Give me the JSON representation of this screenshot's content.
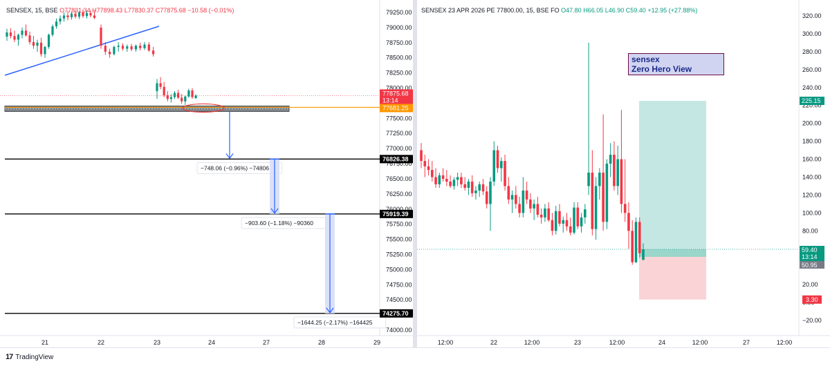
{
  "left_chart": {
    "legend": {
      "symbol": "SENSEX, 15, BSE",
      "open": "O77831.34",
      "high": "H77898.43",
      "low": "L77830.37",
      "close": "C77875.68",
      "change": "−10.58 (−0.01%)"
    },
    "y_ticks": [
      "79250.00",
      "79000.00",
      "78750.00",
      "78500.00",
      "78250.00",
      "78000.00",
      "77750.00",
      "77500.00",
      "77250.00",
      "77000.00",
      "76750.00",
      "76500.00",
      "76250.00",
      "76000.00",
      "75750.00",
      "75500.00",
      "75250.00",
      "75000.00",
      "74750.00",
      "74500.00",
      "74250.00",
      "74000.00"
    ],
    "x_ticks": [
      "21",
      "22",
      "23",
      "24",
      "27",
      "28",
      "29"
    ],
    "price_labels": {
      "current": "77875.68",
      "timer": "13:14",
      "support": "77681.25",
      "level1": "76826.38",
      "level2": "75919.39",
      "level3": "74275.70"
    },
    "measure_labels": {
      "m1": "−748.06 (−0.96%) −74806",
      "m2": "−903.60 (−1.18%) −90360",
      "m3": "−1644.25 (−2.17%) −164425"
    },
    "colors": {
      "up": "#089981",
      "down": "#f23645",
      "trendline": "#2962ff",
      "support": "#ff9800",
      "zone": "#787b86",
      "arrow": "#2962ff"
    }
  },
  "right_chart": {
    "legend": {
      "symbol": "SENSEX 23 APR 2026 PE 77800.00, 15, BSE FO",
      "open": "O47.80",
      "high": "H66.05",
      "low": "L46.90",
      "close": "C59.40",
      "change": "+12.95 (+27.88%)"
    },
    "watermark": {
      "line1": "sensex",
      "line2": "Zero Hero View"
    },
    "y_ticks": [
      "320.00",
      "300.00",
      "280.00",
      "260.00",
      "240.00",
      "220.00",
      "200.00",
      "180.00",
      "160.00",
      "140.00",
      "120.00",
      "100.00",
      "80.00",
      "60.00",
      "40.00",
      "20.00",
      "0.00",
      "−20.00"
    ],
    "x_ticks": [
      "12:00",
      "22",
      "12:00",
      "23",
      "12:00",
      "24",
      "12:00",
      "27",
      "12:00"
    ],
    "price_labels": {
      "target": "225.15",
      "current": "59.40",
      "timer": "13:14",
      "entry": "50.95",
      "stop": "3.30"
    },
    "colors": {
      "up": "#089981",
      "down": "#f23645",
      "target_zone": "#b2dfdb",
      "stop_zone": "#f8c8cc"
    }
  },
  "chart_data": [
    {
      "type": "candlestick",
      "title": "SENSEX, 15, BSE",
      "y_range": [
        74000,
        79300
      ],
      "levels": {
        "support": 77681.25,
        "targets": [
          76826.38,
          75919.39,
          74275.7
        ],
        "current": 77875.68
      },
      "measures": [
        {
          "from": 77681.25,
          "to": 76826.38,
          "change": -748.06,
          "pct": -0.96
        },
        {
          "from": 76826.38,
          "to": 75919.39,
          "change": -903.6,
          "pct": -1.18
        },
        {
          "from": 75919.39,
          "to": 74275.7,
          "change": -1644.25,
          "pct": -2.17
        }
      ],
      "candles": [
        {
          "o": 78850,
          "h": 78980,
          "l": 78780,
          "c": 78920
        },
        {
          "o": 78920,
          "h": 78990,
          "l": 78820,
          "c": 78860
        },
        {
          "o": 78860,
          "h": 78950,
          "l": 78760,
          "c": 78800
        },
        {
          "o": 78800,
          "h": 78900,
          "l": 78700,
          "c": 78880
        },
        {
          "o": 78880,
          "h": 79000,
          "l": 78820,
          "c": 78950
        },
        {
          "o": 78950,
          "h": 79050,
          "l": 78850,
          "c": 78870
        },
        {
          "o": 78870,
          "h": 78930,
          "l": 78720,
          "c": 78760
        },
        {
          "o": 78760,
          "h": 78860,
          "l": 78650,
          "c": 78700
        },
        {
          "o": 78700,
          "h": 78800,
          "l": 78600,
          "c": 78750
        },
        {
          "o": 78750,
          "h": 78830,
          "l": 78520,
          "c": 78560
        },
        {
          "o": 78560,
          "h": 78700,
          "l": 78500,
          "c": 78680
        },
        {
          "o": 78680,
          "h": 78900,
          "l": 78650,
          "c": 78880
        },
        {
          "o": 78880,
          "h": 79050,
          "l": 78850,
          "c": 79020
        },
        {
          "o": 79020,
          "h": 79150,
          "l": 78980,
          "c": 79100
        },
        {
          "o": 79100,
          "h": 79200,
          "l": 79050,
          "c": 79150
        },
        {
          "o": 79150,
          "h": 79250,
          "l": 79100,
          "c": 79200
        },
        {
          "o": 79200,
          "h": 79280,
          "l": 79120,
          "c": 79170
        },
        {
          "o": 79170,
          "h": 79260,
          "l": 79130,
          "c": 79230
        },
        {
          "o": 79230,
          "h": 79290,
          "l": 79150,
          "c": 79180
        },
        {
          "o": 79180,
          "h": 79270,
          "l": 79140,
          "c": 79250
        },
        {
          "o": 79250,
          "h": 79300,
          "l": 79160,
          "c": 79190
        },
        {
          "o": 79190,
          "h": 79280,
          "l": 79150,
          "c": 79240
        },
        {
          "o": 79240,
          "h": 79290,
          "l": 79170,
          "c": 79200
        },
        {
          "o": 79200,
          "h": 79280,
          "l": 79140,
          "c": 79160
        },
        {
          "o": 79000,
          "h": 79050,
          "l": 78650,
          "c": 78700
        },
        {
          "o": 78700,
          "h": 78760,
          "l": 78550,
          "c": 78600
        },
        {
          "o": 78600,
          "h": 78650,
          "l": 78500,
          "c": 78560
        },
        {
          "o": 78560,
          "h": 78700,
          "l": 78540,
          "c": 78680
        },
        {
          "o": 78680,
          "h": 78760,
          "l": 78600,
          "c": 78700
        },
        {
          "o": 78700,
          "h": 78740,
          "l": 78620,
          "c": 78650
        },
        {
          "o": 78650,
          "h": 78720,
          "l": 78600,
          "c": 78690
        },
        {
          "o": 78690,
          "h": 78730,
          "l": 78610,
          "c": 78640
        },
        {
          "o": 78640,
          "h": 78720,
          "l": 78600,
          "c": 78700
        },
        {
          "o": 78700,
          "h": 78750,
          "l": 78620,
          "c": 78660
        },
        {
          "o": 78660,
          "h": 78760,
          "l": 78630,
          "c": 78720
        },
        {
          "o": 78720,
          "h": 78760,
          "l": 78600,
          "c": 78620
        },
        {
          "o": 78620,
          "h": 78680,
          "l": 78520,
          "c": 78560
        },
        {
          "o": 77950,
          "h": 78150,
          "l": 77820,
          "c": 78080
        },
        {
          "o": 78080,
          "h": 78180,
          "l": 77980,
          "c": 78020
        },
        {
          "o": 78020,
          "h": 78100,
          "l": 77850,
          "c": 77880
        },
        {
          "o": 77880,
          "h": 77950,
          "l": 77780,
          "c": 77820
        },
        {
          "o": 77820,
          "h": 77900,
          "l": 77760,
          "c": 77850
        },
        {
          "o": 77850,
          "h": 77950,
          "l": 77820,
          "c": 77920
        },
        {
          "o": 77920,
          "h": 77970,
          "l": 77820,
          "c": 77840
        },
        {
          "o": 77840,
          "h": 77900,
          "l": 77740,
          "c": 77780
        },
        {
          "o": 77780,
          "h": 77880,
          "l": 77720,
          "c": 77860
        },
        {
          "o": 77860,
          "h": 77990,
          "l": 77840,
          "c": 77960
        },
        {
          "o": 77960,
          "h": 78000,
          "l": 77820,
          "c": 77850
        },
        {
          "o": 77831,
          "h": 77898,
          "l": 77830,
          "c": 77876
        }
      ]
    },
    {
      "type": "candlestick",
      "title": "SENSEX 23 APR 2026 PE 77800.00, 15, BSE FO",
      "y_range": [
        -30,
        330
      ],
      "position": {
        "entry": 50.95,
        "target": 225.15,
        "stop": 3.3,
        "current": 59.4
      },
      "candles": [
        {
          "o": 170,
          "h": 178,
          "l": 150,
          "c": 158
        },
        {
          "o": 158,
          "h": 165,
          "l": 140,
          "c": 152
        },
        {
          "o": 152,
          "h": 160,
          "l": 142,
          "c": 148
        },
        {
          "o": 148,
          "h": 158,
          "l": 135,
          "c": 140
        },
        {
          "o": 140,
          "h": 150,
          "l": 128,
          "c": 132
        },
        {
          "o": 132,
          "h": 145,
          "l": 128,
          "c": 142
        },
        {
          "o": 142,
          "h": 150,
          "l": 135,
          "c": 138
        },
        {
          "o": 138,
          "h": 148,
          "l": 130,
          "c": 135
        },
        {
          "o": 135,
          "h": 142,
          "l": 128,
          "c": 130
        },
        {
          "o": 130,
          "h": 140,
          "l": 126,
          "c": 137
        },
        {
          "o": 137,
          "h": 145,
          "l": 130,
          "c": 140
        },
        {
          "o": 140,
          "h": 145,
          "l": 128,
          "c": 132
        },
        {
          "o": 132,
          "h": 140,
          "l": 125,
          "c": 128
        },
        {
          "o": 128,
          "h": 138,
          "l": 120,
          "c": 135
        },
        {
          "o": 135,
          "h": 142,
          "l": 118,
          "c": 122
        },
        {
          "o": 122,
          "h": 130,
          "l": 115,
          "c": 125
        },
        {
          "o": 125,
          "h": 135,
          "l": 118,
          "c": 132
        },
        {
          "o": 132,
          "h": 138,
          "l": 120,
          "c": 124
        },
        {
          "o": 124,
          "h": 130,
          "l": 105,
          "c": 110
        },
        {
          "o": 110,
          "h": 140,
          "l": 80,
          "c": 135
        },
        {
          "o": 135,
          "h": 180,
          "l": 130,
          "c": 170
        },
        {
          "o": 170,
          "h": 175,
          "l": 145,
          "c": 150
        },
        {
          "o": 150,
          "h": 162,
          "l": 135,
          "c": 158
        },
        {
          "o": 158,
          "h": 165,
          "l": 125,
          "c": 130
        },
        {
          "o": 130,
          "h": 140,
          "l": 110,
          "c": 115
        },
        {
          "o": 115,
          "h": 125,
          "l": 100,
          "c": 120
        },
        {
          "o": 120,
          "h": 130,
          "l": 105,
          "c": 110
        },
        {
          "o": 110,
          "h": 118,
          "l": 95,
          "c": 100
        },
        {
          "o": 100,
          "h": 140,
          "l": 95,
          "c": 125
        },
        {
          "o": 125,
          "h": 135,
          "l": 110,
          "c": 115
        },
        {
          "o": 115,
          "h": 122,
          "l": 100,
          "c": 105
        },
        {
          "o": 105,
          "h": 115,
          "l": 92,
          "c": 110
        },
        {
          "o": 110,
          "h": 118,
          "l": 95,
          "c": 98
        },
        {
          "o": 98,
          "h": 105,
          "l": 88,
          "c": 95
        },
        {
          "o": 95,
          "h": 110,
          "l": 90,
          "c": 105
        },
        {
          "o": 105,
          "h": 112,
          "l": 90,
          "c": 92
        },
        {
          "o": 92,
          "h": 100,
          "l": 75,
          "c": 80
        },
        {
          "o": 80,
          "h": 108,
          "l": 76,
          "c": 102
        },
        {
          "o": 102,
          "h": 110,
          "l": 85,
          "c": 88
        },
        {
          "o": 88,
          "h": 96,
          "l": 78,
          "c": 92
        },
        {
          "o": 92,
          "h": 100,
          "l": 80,
          "c": 85
        },
        {
          "o": 85,
          "h": 95,
          "l": 75,
          "c": 78
        },
        {
          "o": 78,
          "h": 112,
          "l": 76,
          "c": 106
        },
        {
          "o": 106,
          "h": 112,
          "l": 82,
          "c": 85
        },
        {
          "o": 85,
          "h": 100,
          "l": 78,
          "c": 95
        },
        {
          "o": 95,
          "h": 110,
          "l": 88,
          "c": 104
        },
        {
          "o": 130,
          "h": 290,
          "l": 120,
          "c": 145
        },
        {
          "o": 145,
          "h": 170,
          "l": 75,
          "c": 82
        },
        {
          "o": 82,
          "h": 140,
          "l": 70,
          "c": 130
        },
        {
          "o": 130,
          "h": 150,
          "l": 115,
          "c": 145
        },
        {
          "o": 145,
          "h": 210,
          "l": 80,
          "c": 90
        },
        {
          "o": 90,
          "h": 160,
          "l": 82,
          "c": 155
        },
        {
          "o": 155,
          "h": 178,
          "l": 140,
          "c": 165
        },
        {
          "o": 165,
          "h": 180,
          "l": 125,
          "c": 130
        },
        {
          "o": 130,
          "h": 175,
          "l": 120,
          "c": 160
        },
        {
          "o": 160,
          "h": 215,
          "l": 100,
          "c": 110
        },
        {
          "o": 110,
          "h": 160,
          "l": 90,
          "c": 100
        },
        {
          "o": 100,
          "h": 112,
          "l": 60,
          "c": 80
        },
        {
          "o": 80,
          "h": 92,
          "l": 42,
          "c": 45
        },
        {
          "o": 45,
          "h": 95,
          "l": 44,
          "c": 90
        },
        {
          "o": 90,
          "h": 95,
          "l": 50,
          "c": 55
        },
        {
          "o": 47.8,
          "h": 66.05,
          "l": 46.9,
          "c": 59.4
        }
      ]
    }
  ]
}
